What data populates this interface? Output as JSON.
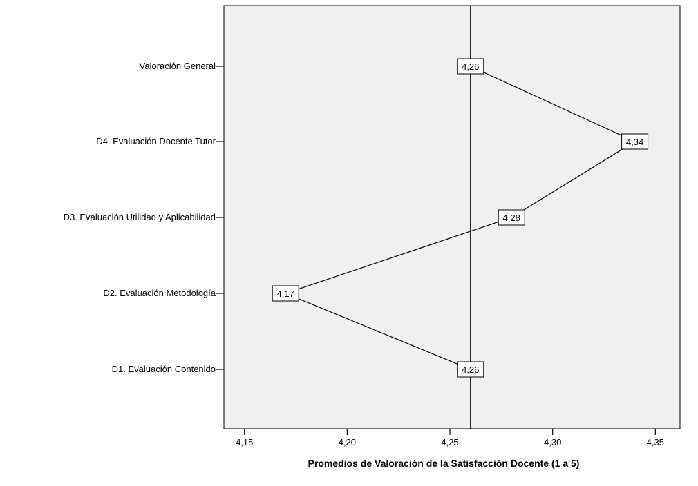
{
  "chart_data": {
    "type": "line",
    "orientation": "horizontal",
    "categories": [
      "Valoración General",
      "D4. Evaluación Docente Tutor",
      "D3. Evaluación Utilidad y Aplicabilidad",
      "D2. Evaluación Metodología",
      "D1. Evaluación Contenido"
    ],
    "values": [
      4.26,
      4.34,
      4.28,
      4.17,
      4.26
    ],
    "data_labels": [
      "4,26",
      "4,34",
      "4,28",
      "4,17",
      "4,26"
    ],
    "xlabel": "Promedios de Valoración de la Satisfacción Docente (1 a 5)",
    "xlim": [
      4.14,
      4.362
    ],
    "x_ticks": [
      4.15,
      4.2,
      4.25,
      4.3,
      4.35
    ],
    "x_tick_labels": [
      "4,15",
      "4,20",
      "4,25",
      "4,30",
      "4,35"
    ],
    "reference_line": 4.26,
    "grid": false,
    "colors": {
      "plot_background": "#f0f0f0",
      "line": "#000000",
      "label_box": "#ffffff"
    }
  }
}
